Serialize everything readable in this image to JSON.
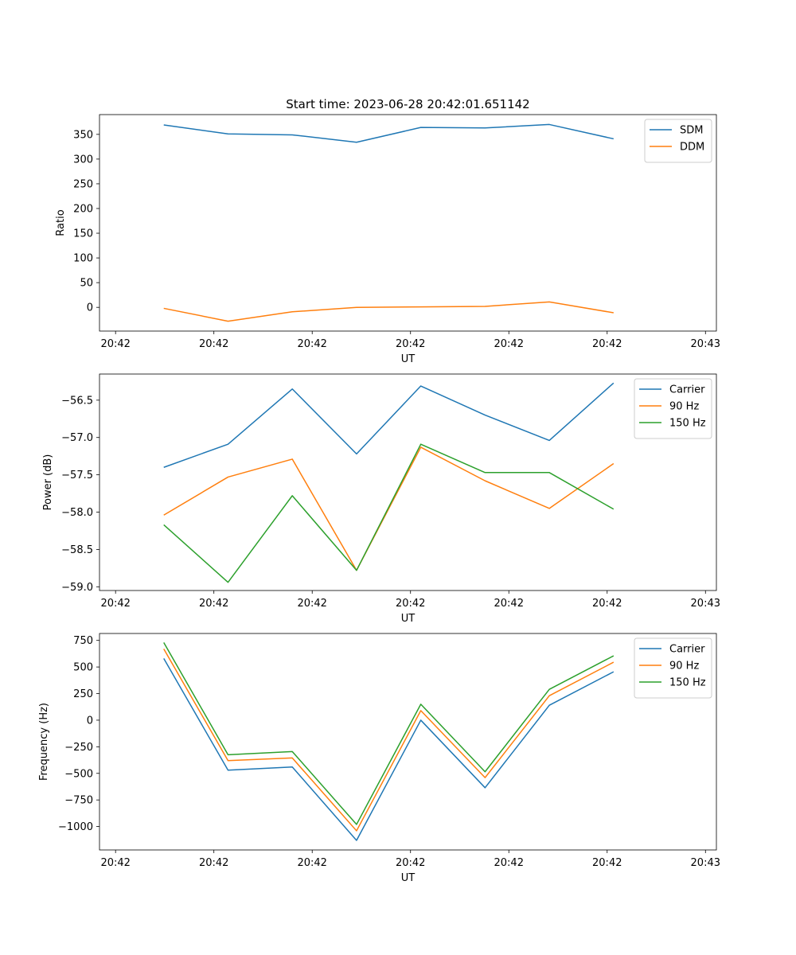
{
  "title": "Start time: 2023-06-28 20:42:01.651142",
  "colors": {
    "c0": "#1f77b4",
    "c1": "#ff7f0e",
    "c2": "#2ca02c"
  },
  "chart_data": [
    {
      "type": "line",
      "title": "Start time: 2023-06-28 20:42:01.651142",
      "xlabel": "UT",
      "ylabel": "Ratio",
      "xticks": [
        "20:42",
        "20:42",
        "20:42",
        "20:42",
        "20:42",
        "20:42",
        "20:43"
      ],
      "yticks": [
        0,
        50,
        100,
        150,
        200,
        250,
        300,
        350
      ],
      "ylim": [
        -48,
        390
      ],
      "legend": "top-right",
      "x": [
        1,
        2,
        3,
        4,
        5,
        6,
        7,
        8
      ],
      "series": [
        {
          "name": "SDM",
          "color": "#1f77b4",
          "values": [
            369,
            351,
            349,
            334,
            364,
            363,
            370,
            341
          ]
        },
        {
          "name": "DDM",
          "color": "#ff7f0e",
          "values": [
            -2,
            -28,
            -9,
            0,
            1,
            2,
            11,
            -11
          ]
        }
      ]
    },
    {
      "type": "line",
      "title": "",
      "xlabel": "UT",
      "ylabel": "Power (dB)",
      "xticks": [
        "20:42",
        "20:42",
        "20:42",
        "20:42",
        "20:42",
        "20:42",
        "20:43"
      ],
      "yticks": [
        -59.0,
        -58.5,
        -58.0,
        -57.5,
        -57.0,
        -56.5
      ],
      "yticklabels": [
        "−59.0",
        "−58.5",
        "−58.0",
        "−57.5",
        "−57.0",
        "−56.5"
      ],
      "ylim": [
        -59.05,
        -56.15
      ],
      "legend": "top-right",
      "x": [
        1,
        2,
        3,
        4,
        5,
        6,
        7,
        8
      ],
      "series": [
        {
          "name": "Carrier",
          "color": "#1f77b4",
          "values": [
            -57.4,
            -57.09,
            -56.35,
            -57.22,
            -56.31,
            -56.7,
            -57.04,
            -56.27
          ]
        },
        {
          "name": "90 Hz",
          "color": "#ff7f0e",
          "values": [
            -58.04,
            -57.53,
            -57.29,
            -58.78,
            -57.13,
            -57.58,
            -57.95,
            -57.35
          ]
        },
        {
          "name": "150 Hz",
          "color": "#2ca02c",
          "values": [
            -58.17,
            -58.94,
            -57.78,
            -58.78,
            -57.09,
            -57.47,
            -57.47,
            -57.96
          ]
        }
      ]
    },
    {
      "type": "line",
      "title": "",
      "xlabel": "UT",
      "ylabel": "Frequency (Hz)",
      "xticks": [
        "20:42",
        "20:42",
        "20:42",
        "20:42",
        "20:42",
        "20:42",
        "20:43"
      ],
      "yticks": [
        -1000,
        -750,
        -500,
        -250,
        0,
        250,
        500,
        750
      ],
      "yticklabels": [
        "−1000",
        "−750",
        "−500",
        "−250",
        "0",
        "250",
        "500",
        "750"
      ],
      "ylim": [
        -1220,
        815
      ],
      "legend": "top-right",
      "x": [
        1,
        2,
        3,
        4,
        5,
        6,
        7,
        8
      ],
      "series": [
        {
          "name": "Carrier",
          "color": "#1f77b4",
          "values": [
            580,
            -470,
            -440,
            -1130,
            0,
            -635,
            140,
            455
          ]
        },
        {
          "name": "90 Hz",
          "color": "#ff7f0e",
          "values": [
            670,
            -380,
            -355,
            -1040,
            90,
            -540,
            230,
            545
          ]
        },
        {
          "name": "150 Hz",
          "color": "#2ca02c",
          "values": [
            730,
            -325,
            -295,
            -980,
            150,
            -485,
            290,
            605
          ]
        }
      ]
    }
  ]
}
